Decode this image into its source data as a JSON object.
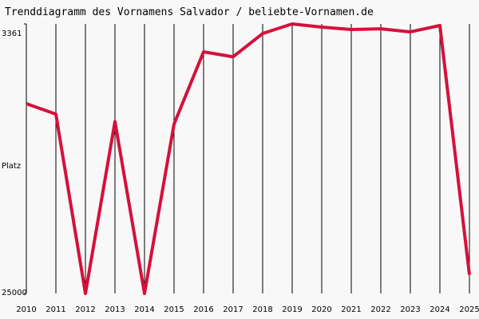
{
  "chart_data": {
    "type": "line",
    "title": "Trenddiagramm des Vornamens Salvador / beliebte-Vornamen.de",
    "y_label": "Platz",
    "x": [
      2010,
      2011,
      2012,
      2013,
      2014,
      2015,
      2016,
      2017,
      2018,
      2019,
      2020,
      2021,
      2022,
      2023,
      2024,
      2025
    ],
    "series": [
      {
        "name": "Salvador",
        "color": "#d5103b",
        "values": [
          9760,
          10600,
          25000,
          11200,
          25000,
          11400,
          5600,
          6000,
          4130,
          3361,
          3620,
          3810,
          3750,
          4000,
          3490,
          23500
        ]
      }
    ],
    "xlim": [
      2010,
      2025
    ],
    "xticks": [
      2010,
      2011,
      2012,
      2013,
      2014,
      2015,
      2016,
      2017,
      2018,
      2019,
      2020,
      2021,
      2022,
      2023,
      2024,
      2025
    ],
    "ylim": [
      25000,
      3361
    ],
    "yticks": [
      3361,
      25000
    ],
    "grid": true
  }
}
